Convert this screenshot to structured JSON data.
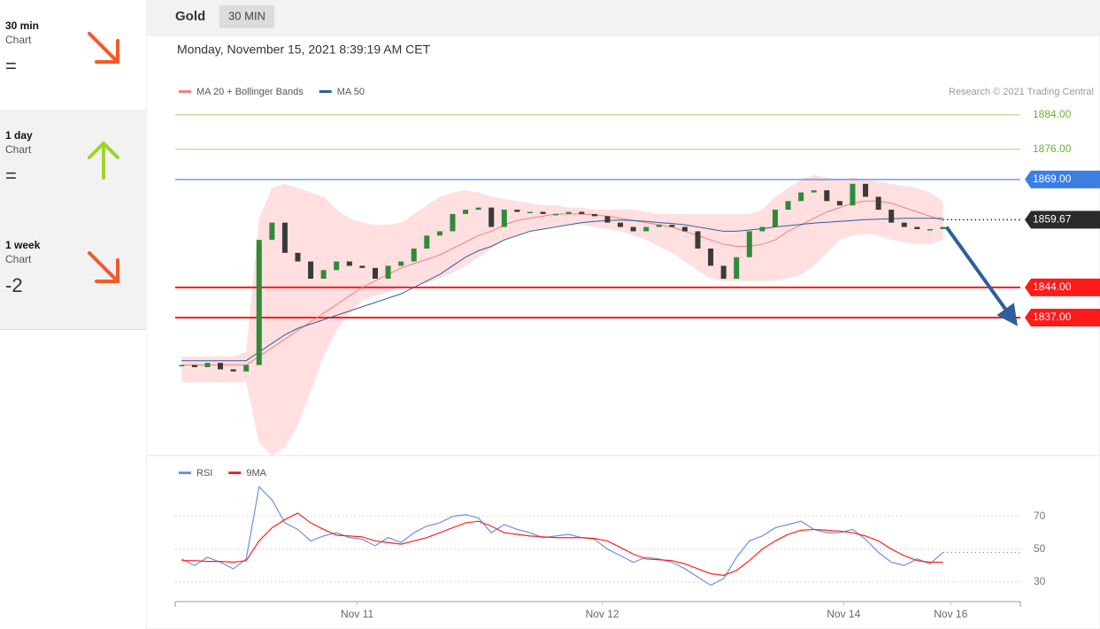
{
  "sidebar": [
    {
      "period": "30 min",
      "kind": "Chart",
      "value": "=",
      "trend": "down"
    },
    {
      "period": "1 day",
      "kind": "Chart",
      "value": "=",
      "trend": "up"
    },
    {
      "period": "1 week",
      "kind": "Chart",
      "value": "-2",
      "trend": "down"
    }
  ],
  "header": {
    "title": "Gold",
    "interval": "30 MIN"
  },
  "timestamp": "Monday, November 15, 2021 8:39:19 AM CET",
  "chart_data": [
    {
      "type": "candlestick",
      "legend": [
        {
          "name": "MA 20 + Bollinger Bands",
          "color": "#f08080"
        },
        {
          "name": "MA 50",
          "color": "#2f5e9e"
        }
      ],
      "credit": "Research © 2021 Trading Central",
      "xlim": [
        -0.5,
        65
      ],
      "xticks": [
        {
          "value": 13.6,
          "label": "Nov 11"
        },
        {
          "value": 32.6,
          "label": "Nov 12"
        },
        {
          "value": 51.3,
          "label": "Nov 14"
        },
        {
          "value": 59.6,
          "label": "Nov 16"
        }
      ],
      "ylim": [
        1805,
        1902
      ],
      "up_color": "#2e8b3a",
      "down_color": "#3a3a3a",
      "open": [
        1826,
        1826,
        1825.5,
        1826.5,
        1825,
        1824.5,
        1826,
        1855,
        1859,
        1852,
        1850,
        1846,
        1848,
        1850,
        1849,
        1848.5,
        1846,
        1849,
        1850,
        1853,
        1856,
        1857,
        1861,
        1862,
        1862.5,
        1858,
        1862,
        1861.5,
        1861.5,
        1861,
        1861,
        1861.5,
        1861,
        1860.5,
        1859,
        1858,
        1857,
        1858,
        1858.5,
        1858,
        1857,
        1853,
        1849,
        1846,
        1851,
        1857,
        1858,
        1862,
        1864,
        1866,
        1866.5,
        1864,
        1863,
        1868,
        1865,
        1862,
        1859,
        1858,
        1857.5,
        1857.5
      ],
      "close": [
        1826,
        1825.5,
        1826.5,
        1825,
        1824.5,
        1826,
        1855,
        1859,
        1852,
        1850,
        1846,
        1848,
        1850,
        1849,
        1848.5,
        1846,
        1849,
        1850,
        1853,
        1856,
        1857,
        1861,
        1862,
        1862.5,
        1858,
        1862,
        1861.5,
        1861.5,
        1861,
        1861,
        1861.5,
        1861,
        1860.5,
        1859,
        1858,
        1857,
        1858,
        1858.5,
        1858,
        1857,
        1853,
        1849,
        1846,
        1851,
        1857,
        1858,
        1862,
        1864,
        1866,
        1866.5,
        1864,
        1863,
        1868,
        1865,
        1862,
        1859,
        1858,
        1857.5,
        1857.5,
        1858
      ],
      "ma20": [
        1826,
        1826,
        1826,
        1826,
        1826,
        1826,
        1828,
        1830,
        1832,
        1834,
        1836,
        1838,
        1840,
        1842,
        1844,
        1845.5,
        1847,
        1848.5,
        1849.5,
        1850.5,
        1851.5,
        1853,
        1854.5,
        1856,
        1857,
        1858.5,
        1859.5,
        1860,
        1860.5,
        1861,
        1861,
        1861,
        1860.8,
        1860.5,
        1860,
        1859.5,
        1859,
        1858.5,
        1858,
        1857,
        1856,
        1855,
        1854,
        1853.5,
        1853.5,
        1854,
        1855,
        1857,
        1858.5,
        1860,
        1861.5,
        1862.5,
        1863.5,
        1864,
        1864,
        1863.5,
        1862.5,
        1861.5,
        1860.5,
        1859.5
      ],
      "ma50": [
        1827,
        1827,
        1827,
        1827,
        1827,
        1827,
        1829,
        1831,
        1833,
        1834.5,
        1835.5,
        1836.5,
        1837.5,
        1838.5,
        1839.5,
        1840.5,
        1841.5,
        1842.5,
        1844,
        1845.5,
        1847,
        1849,
        1851,
        1852.5,
        1853.5,
        1855,
        1856,
        1857,
        1857.5,
        1858,
        1858.5,
        1859,
        1859.3,
        1859.5,
        1859.6,
        1859.5,
        1859.3,
        1859,
        1858.8,
        1858.5,
        1858,
        1857.5,
        1857,
        1857,
        1857.3,
        1857.6,
        1858,
        1858.3,
        1858.6,
        1858.9,
        1859.1,
        1859.3,
        1859.5,
        1859.7,
        1859.8,
        1859.9,
        1860,
        1860,
        1860,
        1860
      ],
      "band_upper": [
        1828,
        1828,
        1828,
        1828,
        1828,
        1829,
        1860,
        1867,
        1868,
        1867,
        1866,
        1865,
        1862,
        1860,
        1859,
        1858.5,
        1858.5,
        1859,
        1861,
        1863,
        1865,
        1866,
        1866.5,
        1866,
        1865,
        1864.5,
        1864,
        1863.5,
        1863,
        1863,
        1862.5,
        1862.5,
        1862,
        1862,
        1862,
        1862,
        1861.5,
        1861,
        1861,
        1861,
        1861,
        1861,
        1861,
        1861,
        1861,
        1862,
        1865,
        1867,
        1869,
        1870,
        1869.5,
        1869,
        1869.5,
        1869,
        1868.5,
        1868,
        1867.5,
        1867,
        1866,
        1864
      ],
      "band_lower": [
        1822,
        1822,
        1822,
        1822,
        1822,
        1822,
        1808,
        1805,
        1807,
        1812,
        1820,
        1828,
        1834,
        1838,
        1841,
        1842,
        1843,
        1844,
        1844.5,
        1845,
        1846,
        1847.5,
        1849,
        1851,
        1853,
        1855,
        1856,
        1857,
        1857.5,
        1858,
        1858.5,
        1858.5,
        1858,
        1857.5,
        1857,
        1856,
        1855,
        1853.5,
        1852,
        1850,
        1848,
        1846,
        1845.5,
        1845.5,
        1845.5,
        1845.5,
        1845.5,
        1846,
        1847,
        1849,
        1852,
        1855,
        1856,
        1856.5,
        1856,
        1855,
        1854.5,
        1854,
        1854,
        1855
      ],
      "levels": [
        {
          "value": 1884,
          "label": "1884.00",
          "color": "#6cb52d",
          "line": "thin",
          "boxed": false
        },
        {
          "value": 1876,
          "label": "1876.00",
          "color": "#6cb52d",
          "line": "thin",
          "boxed": false
        },
        {
          "value": 1869,
          "label": "1869.00",
          "color": "#3d7fe0",
          "line": "thin",
          "boxed": true
        },
        {
          "value": 1859.67,
          "label": "1859.67",
          "color": "#2b2b2b",
          "line": "dotted",
          "boxed": true
        },
        {
          "value": 1844,
          "label": "1844.00",
          "color": "#ff1a1a",
          "line": "thick",
          "boxed": true
        },
        {
          "value": 1837,
          "label": "1837.00",
          "color": "#ff1a1a",
          "line": "thick",
          "boxed": true
        }
      ],
      "target": 1837
    },
    {
      "type": "line",
      "series": [
        {
          "name": "RSI",
          "color": "#6d8fe8",
          "values": [
            44,
            40,
            45,
            42,
            38,
            44,
            88,
            80,
            66,
            62,
            55,
            58,
            60,
            57,
            56,
            52,
            57,
            54,
            60,
            64,
            66,
            70,
            71,
            69,
            60,
            65,
            62,
            60,
            57,
            58,
            59,
            57,
            56,
            50,
            46,
            42,
            45,
            44,
            42,
            38,
            33,
            28,
            32,
            45,
            55,
            58,
            63,
            65,
            67,
            62,
            60,
            60,
            62,
            56,
            48,
            42,
            40,
            44,
            41,
            48
          ]
        },
        {
          "name": "9MA",
          "color": "#ff2020",
          "values": [
            43,
            43,
            42.5,
            42.5,
            42,
            43,
            55,
            63,
            68,
            72,
            66,
            62,
            58.5,
            58,
            57.5,
            55,
            54,
            53,
            55,
            57,
            60,
            63,
            66,
            67,
            64,
            60,
            59,
            58,
            57.5,
            57,
            57,
            57,
            56.5,
            55,
            51,
            47,
            44,
            43.5,
            43,
            41,
            38,
            35,
            34,
            37,
            43,
            50,
            55,
            59,
            61.5,
            62,
            61.5,
            61,
            60,
            58,
            55,
            50,
            46,
            43,
            42,
            42
          ]
        }
      ],
      "ylim": [
        18,
        93
      ],
      "yticks": [
        70,
        50,
        30
      ]
    }
  ]
}
